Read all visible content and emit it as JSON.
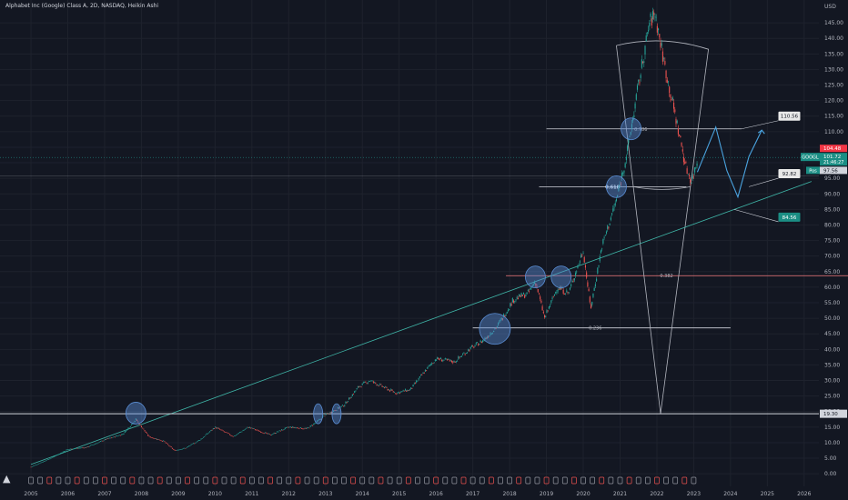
{
  "header": {
    "title": "Alphabet Inc (Google) Class A, 2D, NASDAQ, Heikin Ashi"
  },
  "currency": "USD",
  "logo": {
    "icon": "tradingview-logo-icon"
  },
  "colors": {
    "background": "#131722",
    "grid": "#1e222d",
    "candle_up": "#26a69a",
    "candle_down": "#ef5350",
    "trendline": "#3fb5a7",
    "fib_line": "#d1d4dc",
    "cone": "#b2b5be",
    "circle": "#5b8fd6",
    "projection_arrow": "#4aa3df",
    "label_teal": "#1b8e84",
    "label_red": "#f23645",
    "label_grey": "#d1d4dc"
  },
  "chart_data": {
    "type": "candlestick",
    "title": "Alphabet Inc (Google) Class A, 2D, NASDAQ, Heikin Ashi",
    "symbol": "GOOGL",
    "ylim": [
      -2,
      150
    ],
    "xlim": [
      2004.9,
      2026.4
    ],
    "x_ticks": [
      "2005",
      "2006",
      "2007",
      "2008",
      "2009",
      "2010",
      "2011",
      "2012",
      "2013",
      "2014",
      "2015",
      "2016",
      "2017",
      "2018",
      "2019",
      "2020",
      "2021",
      "2022",
      "2023",
      "2024",
      "2025",
      "2026"
    ],
    "y_ticks": [
      "0.00",
      "5.00",
      "10.00",
      "15.00",
      "20.00",
      "25.00",
      "30.00",
      "35.00",
      "40.00",
      "45.00",
      "50.00",
      "55.00",
      "60.00",
      "65.00",
      "70.00",
      "75.00",
      "80.00",
      "85.00",
      "90.00",
      "95.00",
      "100.00",
      "105.00",
      "110.00",
      "115.00",
      "120.00",
      "125.00",
      "130.00",
      "135.00",
      "140.00",
      "145.00"
    ],
    "price_path": [
      [
        2005.0,
        2.2
      ],
      [
        2005.5,
        4.8
      ],
      [
        2006.0,
        7.9
      ],
      [
        2006.5,
        8.5
      ],
      [
        2007.0,
        10.9
      ],
      [
        2007.5,
        12.8
      ],
      [
        2007.85,
        17.5
      ],
      [
        2008.2,
        12.0
      ],
      [
        2008.6,
        10.5
      ],
      [
        2008.9,
        7.5
      ],
      [
        2009.2,
        8.3
      ],
      [
        2009.6,
        11.0
      ],
      [
        2010.0,
        15.0
      ],
      [
        2010.5,
        12.0
      ],
      [
        2010.9,
        15.0
      ],
      [
        2011.5,
        12.5
      ],
      [
        2012.0,
        15.0
      ],
      [
        2012.5,
        14.5
      ],
      [
        2012.8,
        17.0
      ],
      [
        2013.0,
        19.0
      ],
      [
        2013.5,
        22.0
      ],
      [
        2013.9,
        28.0
      ],
      [
        2014.2,
        30.0
      ],
      [
        2014.9,
        26.0
      ],
      [
        2015.3,
        27.0
      ],
      [
        2015.7,
        33.0
      ],
      [
        2016.0,
        37.0
      ],
      [
        2016.5,
        36.0
      ],
      [
        2016.9,
        40.0
      ],
      [
        2017.3,
        43.0
      ],
      [
        2017.7,
        48.0
      ],
      [
        2018.1,
        56.0
      ],
      [
        2018.5,
        58.0
      ],
      [
        2018.7,
        62.0
      ],
      [
        2018.95,
        50.0
      ],
      [
        2019.3,
        60.0
      ],
      [
        2019.6,
        58.0
      ],
      [
        2020.0,
        72.0
      ],
      [
        2020.2,
        53.0
      ],
      [
        2020.5,
        73.0
      ],
      [
        2020.9,
        88.0
      ],
      [
        2021.2,
        104.0
      ],
      [
        2021.5,
        125.0
      ],
      [
        2021.8,
        145.0
      ],
      [
        2021.95,
        148.0
      ],
      [
        2022.2,
        132.0
      ],
      [
        2022.5,
        115.0
      ],
      [
        2022.8,
        98.0
      ],
      [
        2022.95,
        94.0
      ],
      [
        2023.1,
        101.0
      ]
    ],
    "current_price": {
      "label": "GOOGL",
      "price": 101.72,
      "last": "104.48",
      "value": "101.72",
      "countdown": "21:46:27"
    },
    "position": {
      "label": "Pos",
      "value": "97.56"
    },
    "trendline": {
      "from": [
        2005.0,
        3.0
      ],
      "to": [
        2026.2,
        94.0
      ],
      "color": "#3fb5a7"
    },
    "horizontal_lines": [
      {
        "y": 19.3,
        "label": "19.30"
      },
      {
        "y": 95.7,
        "label": ""
      }
    ],
    "fib_levels": [
      {
        "label": "0.786",
        "y": 110.9,
        "x_from": 2019.0,
        "x_to": 2024.3,
        "color": "#d1d4dc"
      },
      {
        "label": "0.618",
        "y": 92.3,
        "x_from": 2018.8,
        "x_to": 2022.8,
        "color": "#d1d4dc"
      },
      {
        "label": "0.382",
        "y": 63.7,
        "x_from": 2017.9,
        "x_to": 2027.2,
        "color": "#f77c80"
      },
      {
        "label": "0.236",
        "y": 46.9,
        "x_from": 2017.0,
        "x_to": 2024.0,
        "color": "#d1d4dc"
      }
    ],
    "cone": {
      "apex": [
        2022.1,
        19.3
      ],
      "left_top": [
        2020.9,
        137.7
      ],
      "right_top": [
        2023.4,
        136.5
      ]
    },
    "highlight_circles": [
      {
        "x": 2007.85,
        "y": 19.5
      },
      {
        "x": 2012.8,
        "y": 19.3
      },
      {
        "x": 2013.3,
        "y": 19.3
      },
      {
        "x": 2017.6,
        "y": 46.6
      },
      {
        "x": 2018.7,
        "y": 63.3
      },
      {
        "x": 2019.4,
        "y": 63.3
      },
      {
        "x": 2020.9,
        "y": 92.3
      },
      {
        "x": 2021.3,
        "y": 110.9
      }
    ],
    "projection_path": [
      [
        2023.1,
        97.0
      ],
      [
        2023.6,
        111.5
      ],
      [
        2023.9,
        97.5
      ],
      [
        2024.2,
        89.0
      ],
      [
        2024.5,
        102.0
      ],
      [
        2024.85,
        110.5
      ]
    ],
    "annotations": [
      {
        "text": "110.56",
        "x": 2025.3,
        "y": 115.0
      },
      {
        "text": "92.82",
        "x": 2025.3,
        "y": 96.5
      },
      {
        "text": "84.56",
        "x": 2025.3,
        "y": 82.5
      }
    ]
  }
}
